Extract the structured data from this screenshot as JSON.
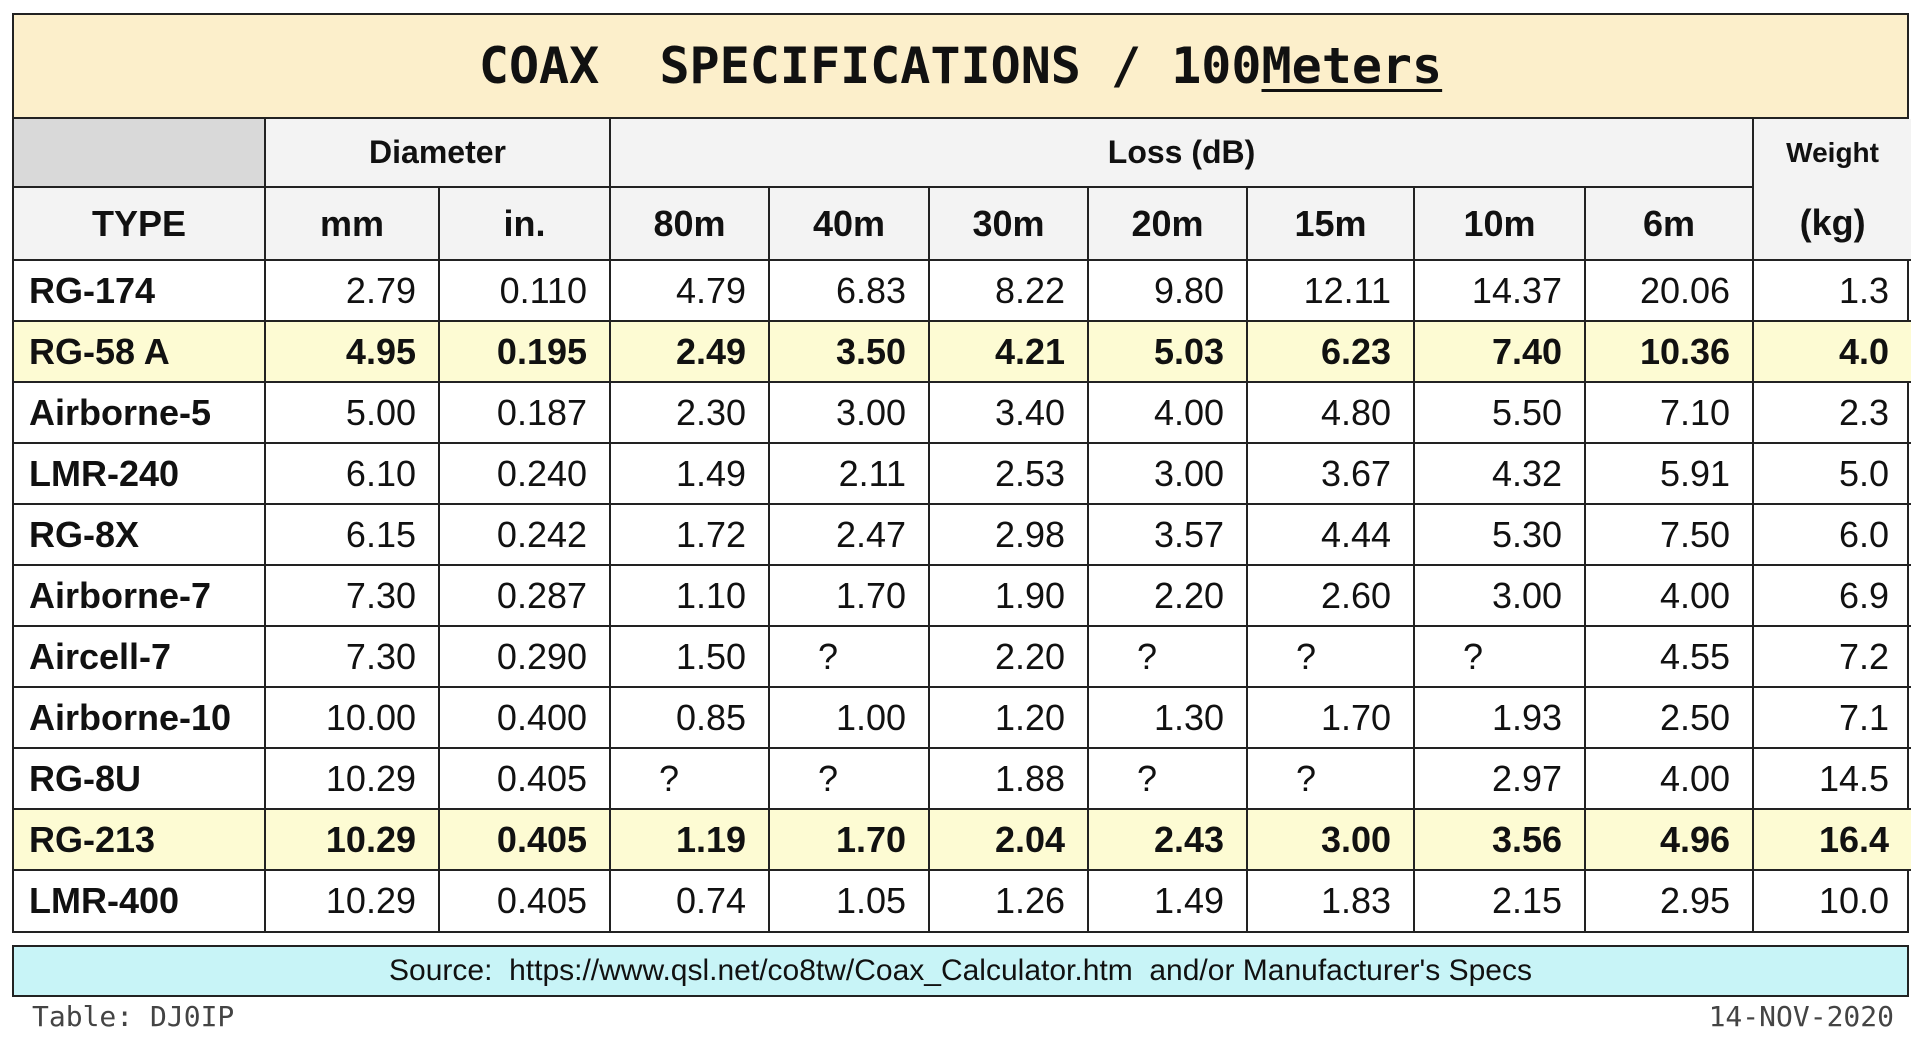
{
  "title": "COAX  SPECIFICATIONS / 100",
  "title_unit": "Meters",
  "header": {
    "type": "TYPE",
    "diameter": "Diameter",
    "loss": "Loss (dB)",
    "weight": "Weight",
    "weight_unit": "(kg)",
    "diameter_columns": [
      "mm",
      "in."
    ],
    "loss_columns": [
      "80m",
      "40m",
      "30m",
      "20m",
      "15m",
      "10m",
      "6m"
    ]
  },
  "table": {
    "rows": [
      {
        "cells": [
          "RG-174",
          "2.79",
          "0.110",
          "4.79",
          "6.83",
          "8.22",
          "9.80",
          "12.11",
          "14.37",
          "20.06",
          "1.3"
        ],
        "highlight": false
      },
      {
        "cells": [
          "RG-58 A",
          "4.95",
          "0.195",
          "2.49",
          "3.50",
          "4.21",
          "5.03",
          "6.23",
          "7.40",
          "10.36",
          "4.0"
        ],
        "highlight": true
      },
      {
        "cells": [
          "Airborne-5",
          "5.00",
          "0.187",
          "2.30",
          "3.00",
          "3.40",
          "4.00",
          "4.80",
          "5.50",
          "7.10",
          "2.3"
        ],
        "highlight": false
      },
      {
        "cells": [
          "LMR-240",
          "6.10",
          "0.240",
          "1.49",
          "2.11",
          "2.53",
          "3.00",
          "3.67",
          "4.32",
          "5.91",
          "5.0"
        ],
        "highlight": false
      },
      {
        "cells": [
          "RG-8X",
          "6.15",
          "0.242",
          "1.72",
          "2.47",
          "2.98",
          "3.57",
          "4.44",
          "5.30",
          "7.50",
          "6.0"
        ],
        "highlight": false
      },
      {
        "cells": [
          "Airborne-7",
          "7.30",
          "0.287",
          "1.10",
          "1.70",
          "1.90",
          "2.20",
          "2.60",
          "3.00",
          "4.00",
          "6.9"
        ],
        "highlight": false
      },
      {
        "cells": [
          "Aircell-7",
          "7.30",
          "0.290",
          "1.50",
          "?",
          "2.20",
          "?",
          "?",
          "?",
          "4.55",
          "7.2"
        ],
        "highlight": false
      },
      {
        "cells": [
          "Airborne-10",
          "10.00",
          "0.400",
          "0.85",
          "1.00",
          "1.20",
          "1.30",
          "1.70",
          "1.93",
          "2.50",
          "7.1"
        ],
        "highlight": false
      },
      {
        "cells": [
          "RG-8U",
          "10.29",
          "0.405",
          "?",
          "?",
          "1.88",
          "?",
          "?",
          "2.97",
          "4.00",
          "14.5"
        ],
        "highlight": false
      },
      {
        "cells": [
          "RG-213",
          "10.29",
          "0.405",
          "1.19",
          "1.70",
          "2.04",
          "2.43",
          "3.00",
          "3.56",
          "4.96",
          "16.4"
        ],
        "highlight": true
      },
      {
        "cells": [
          "LMR-400",
          "10.29",
          "0.405",
          "0.74",
          "1.05",
          "1.26",
          "1.49",
          "1.83",
          "2.15",
          "2.95",
          "10.0"
        ],
        "highlight": false
      }
    ]
  },
  "source": "Source:  https://www.qsl.net/co8tw/Coax_Calculator.htm  and/or Manufacturer's Specs",
  "credit": "Table: DJ0IP",
  "date": "14-NOV-2020"
}
